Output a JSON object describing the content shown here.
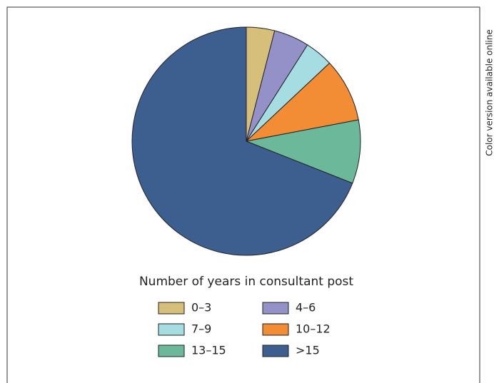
{
  "chart_data": {
    "type": "pie",
    "legend_title": "Number of years in consultant post",
    "annotation": "Color version available online",
    "categories": [
      "0–3",
      "4–6",
      "7–9",
      "10–12",
      "13–15",
      ">15"
    ],
    "values": [
      4,
      5,
      4,
      9,
      9,
      69
    ],
    "colors": [
      "#d6bf7a",
      "#9490c8",
      "#a6dde3",
      "#f28c35",
      "#6bb89a",
      "#3d5f8f"
    ]
  }
}
